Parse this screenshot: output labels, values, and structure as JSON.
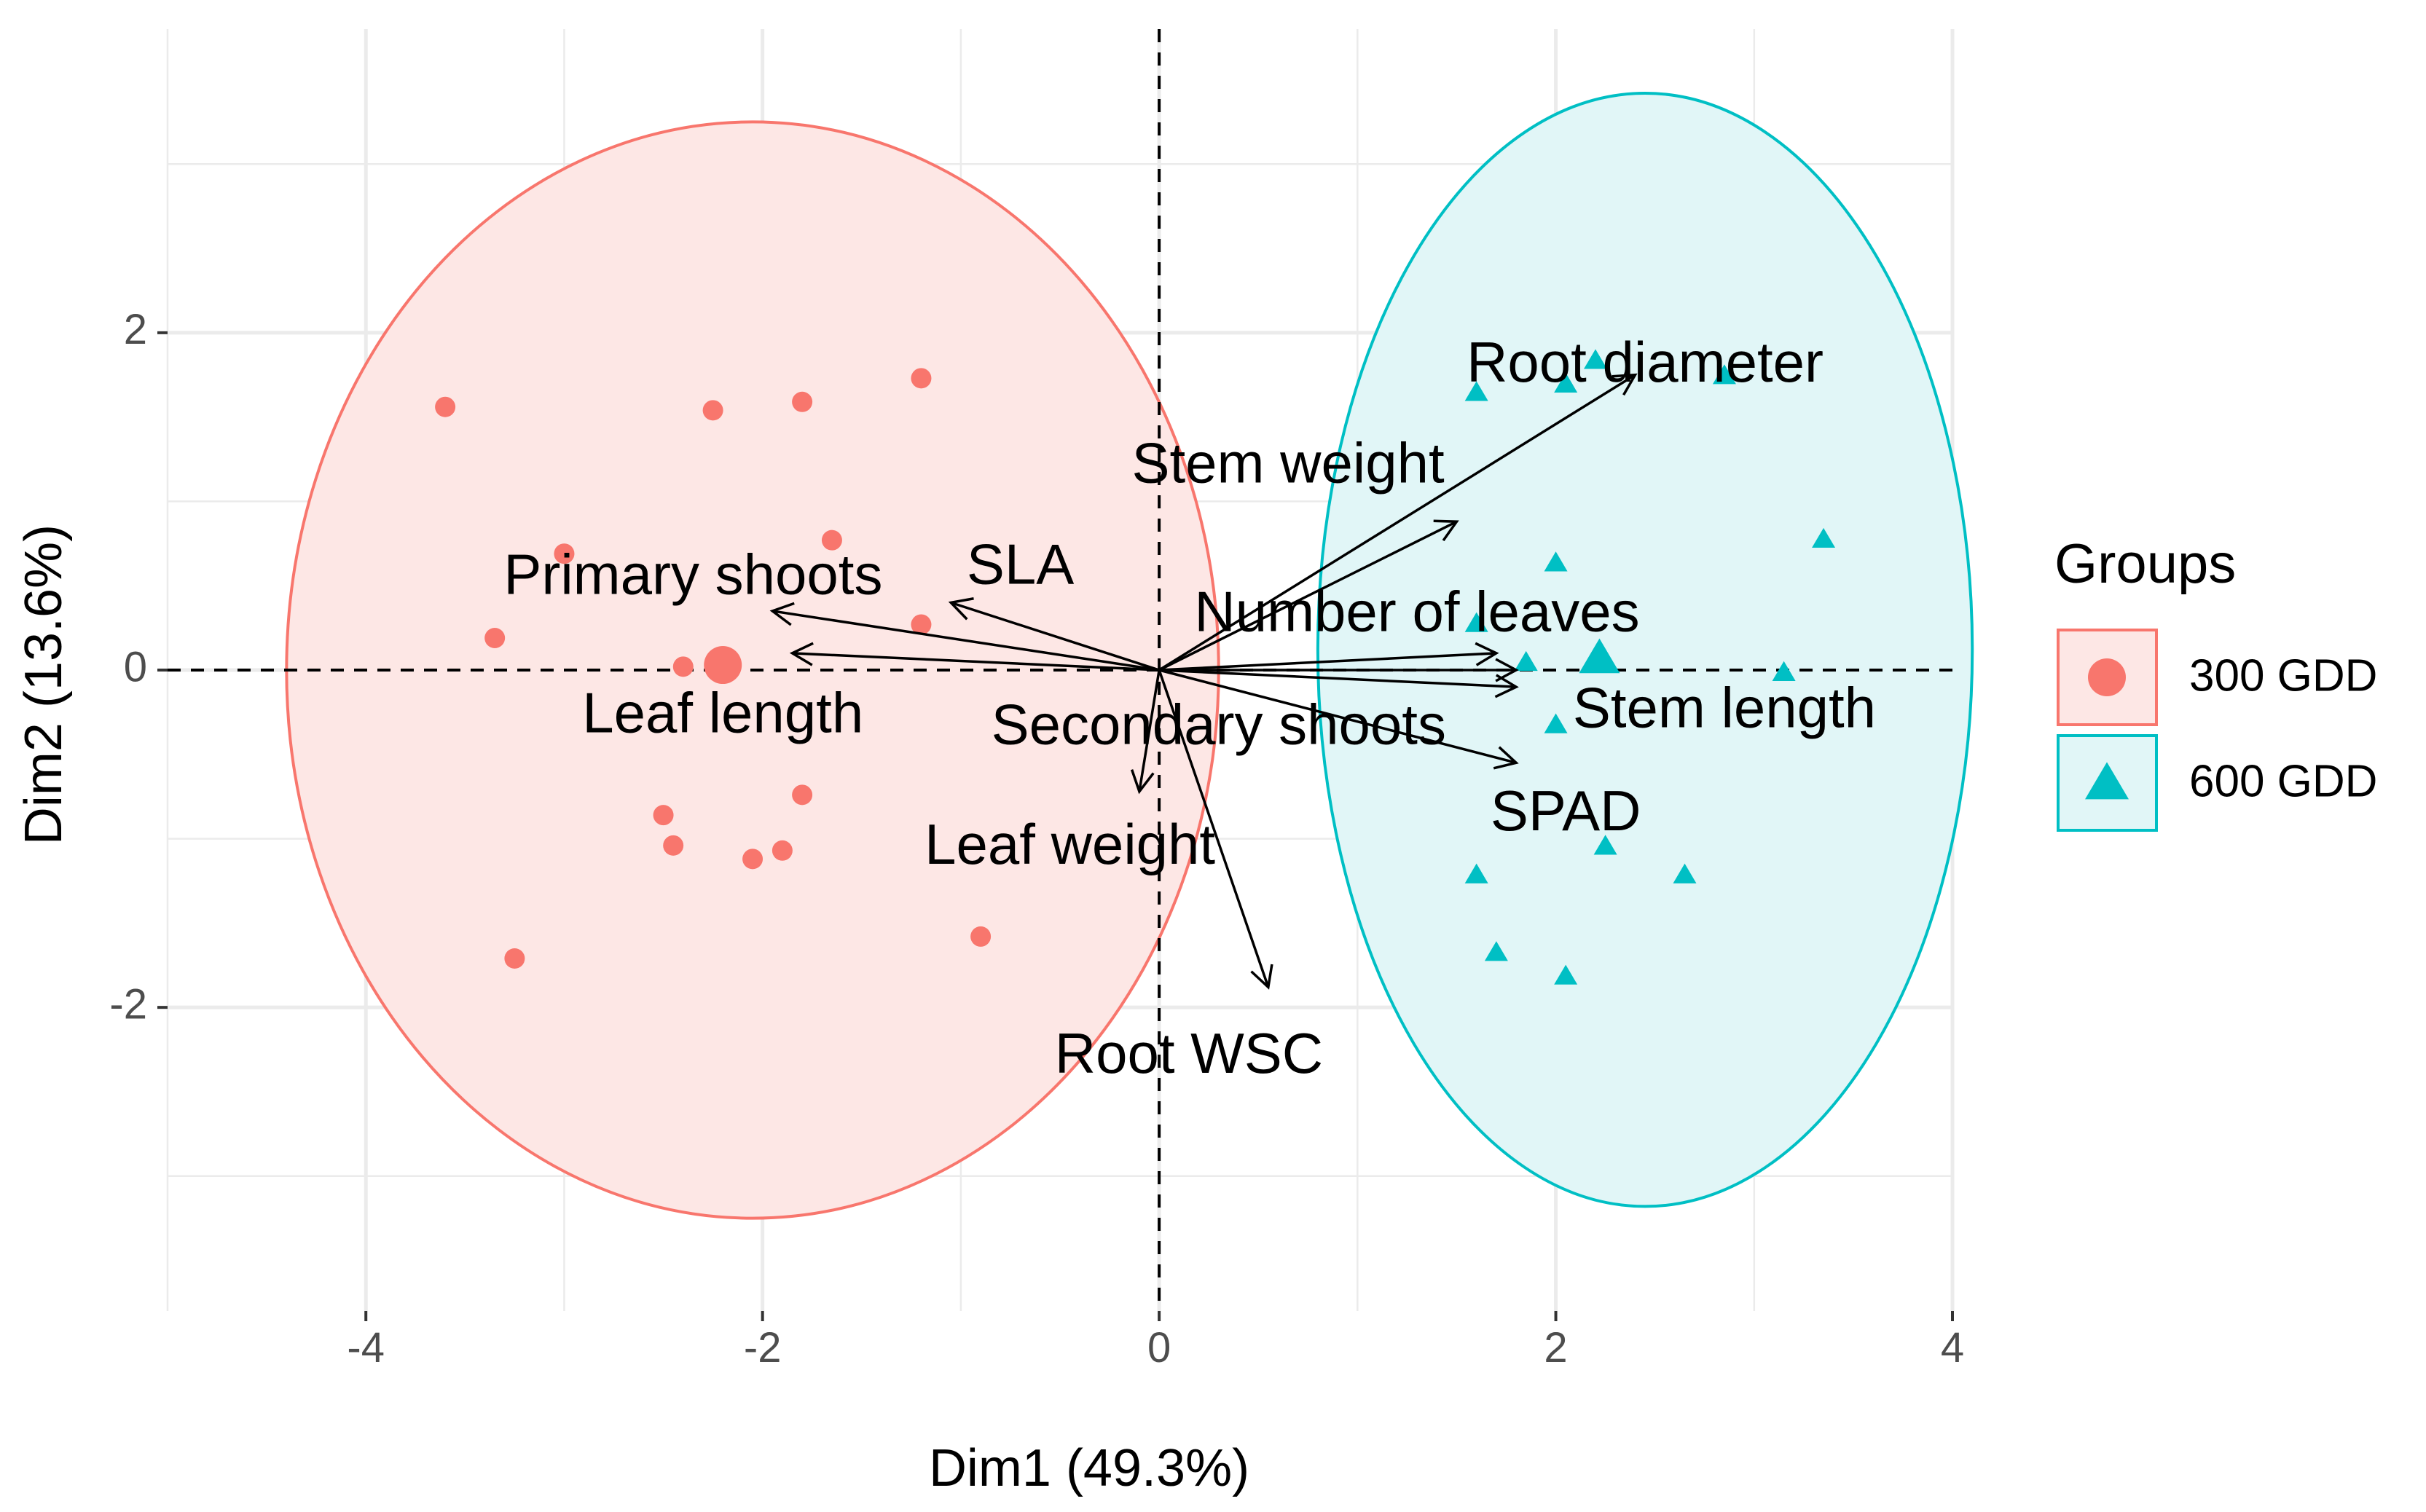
{
  "chart_data": {
    "type": "scatter",
    "subtype": "pca-biplot",
    "xlabel": "Dim1 (49.3%)",
    "ylabel": "Dim2 (13.6%)",
    "xlim": [
      -5.0,
      4.0
    ],
    "ylim": [
      -3.8,
      3.8
    ],
    "x_ticks": [
      -4,
      -2,
      0,
      2,
      4
    ],
    "x_tick_labels": [
      "-4",
      "-2",
      "0",
      "2",
      "4"
    ],
    "y_ticks": [
      -2,
      0,
      2
    ],
    "y_tick_labels": [
      "-2",
      "0",
      "2"
    ],
    "grid": true,
    "legend": {
      "title": "Groups",
      "position": "right",
      "entries": [
        {
          "label": "300 GDD",
          "shape": "circle",
          "color": "#F8766D"
        },
        {
          "label": "600 GDD",
          "shape": "triangle",
          "color": "#00BFC4"
        }
      ]
    },
    "series": [
      {
        "name": "300 GDD",
        "shape": "circle",
        "color": "#F8766D",
        "fill": "#FDE7E5",
        "points": [
          {
            "x": -3.6,
            "y": 1.56
          },
          {
            "x": -2.25,
            "y": 1.54
          },
          {
            "x": -1.8,
            "y": 1.59
          },
          {
            "x": -1.2,
            "y": 1.73
          },
          {
            "x": -3.0,
            "y": 0.69
          },
          {
            "x": -1.65,
            "y": 0.77
          },
          {
            "x": -3.35,
            "y": 0.19
          },
          {
            "x": -1.2,
            "y": 0.27
          },
          {
            "x": -2.4,
            "y": 0.02
          },
          {
            "x": -2.5,
            "y": -0.86
          },
          {
            "x": -2.45,
            "y": -1.04
          },
          {
            "x": -1.8,
            "y": -0.74
          },
          {
            "x": -1.9,
            "y": -1.07
          },
          {
            "x": -2.05,
            "y": -1.12
          },
          {
            "x": -0.9,
            "y": -1.58
          },
          {
            "x": -3.25,
            "y": -1.71
          }
        ],
        "centroid": {
          "x": -2.2,
          "y": 0.03
        },
        "ellipse": {
          "cx": -2.05,
          "cy": 0.0,
          "rx": 2.35,
          "ry": 3.25
        }
      },
      {
        "name": "600 GDD",
        "shape": "triangle",
        "color": "#00BFC4",
        "fill": "#E1F6F7",
        "points": [
          {
            "x": 1.6,
            "y": 1.64
          },
          {
            "x": 2.05,
            "y": 1.69
          },
          {
            "x": 2.2,
            "y": 1.83
          },
          {
            "x": 2.85,
            "y": 1.74
          },
          {
            "x": 2.0,
            "y": 0.63
          },
          {
            "x": 3.35,
            "y": 0.77
          },
          {
            "x": 1.6,
            "y": 0.27
          },
          {
            "x": 1.85,
            "y": 0.04
          },
          {
            "x": 2.2,
            "y": 0.07
          },
          {
            "x": 3.15,
            "y": -0.02
          },
          {
            "x": 2.0,
            "y": -0.33
          },
          {
            "x": 2.25,
            "y": -1.05
          },
          {
            "x": 1.6,
            "y": -1.22
          },
          {
            "x": 2.65,
            "y": -1.22
          },
          {
            "x": 1.7,
            "y": -1.68
          },
          {
            "x": 2.05,
            "y": -1.82
          }
        ],
        "centroid": {
          "x": 2.22,
          "y": 0.06
        },
        "ellipse": {
          "cx": 2.45,
          "cy": 0.12,
          "rx": 1.65,
          "ry": 3.3
        }
      }
    ],
    "variables": [
      {
        "name": "Root diameter",
        "x": 2.4,
        "y": 1.75,
        "label_x": 2.45,
        "label_y": 1.8
      },
      {
        "name": "Stem weight",
        "x": 1.5,
        "y": 0.88,
        "label_x": 0.65,
        "label_y": 1.2
      },
      {
        "name": "SLA",
        "x": -1.05,
        "y": 0.4,
        "label_x": -0.7,
        "label_y": 0.6
      },
      {
        "name": "Primary shoots",
        "x": -1.95,
        "y": 0.35,
        "label_x": -2.35,
        "label_y": 0.54
      },
      {
        "name": "Number of leaves",
        "x": 1.7,
        "y": 0.1,
        "label_x": 1.3,
        "label_y": 0.32
      },
      {
        "name": "Leaf length",
        "x": -1.85,
        "y": 0.1,
        "label_x": -2.2,
        "label_y": -0.28
      },
      {
        "name": "Stem length",
        "x": 1.8,
        "y": -0.1,
        "label_x": 2.85,
        "label_y": -0.25
      },
      {
        "name": "Secondary shoots",
        "x": 1.8,
        "y": -0.55,
        "label_x": 0.3,
        "label_y": -0.35
      },
      {
        "name": "SPAD",
        "x": 1.8,
        "y": 0.0,
        "label_x": 2.05,
        "label_y": -0.86
      },
      {
        "name": "Leaf weight",
        "x": -0.1,
        "y": -0.72,
        "label_x": -0.45,
        "label_y": -1.06
      },
      {
        "name": "Root WSC",
        "x": 0.55,
        "y": -1.88,
        "label_x": 0.15,
        "label_y": -2.3
      }
    ]
  }
}
